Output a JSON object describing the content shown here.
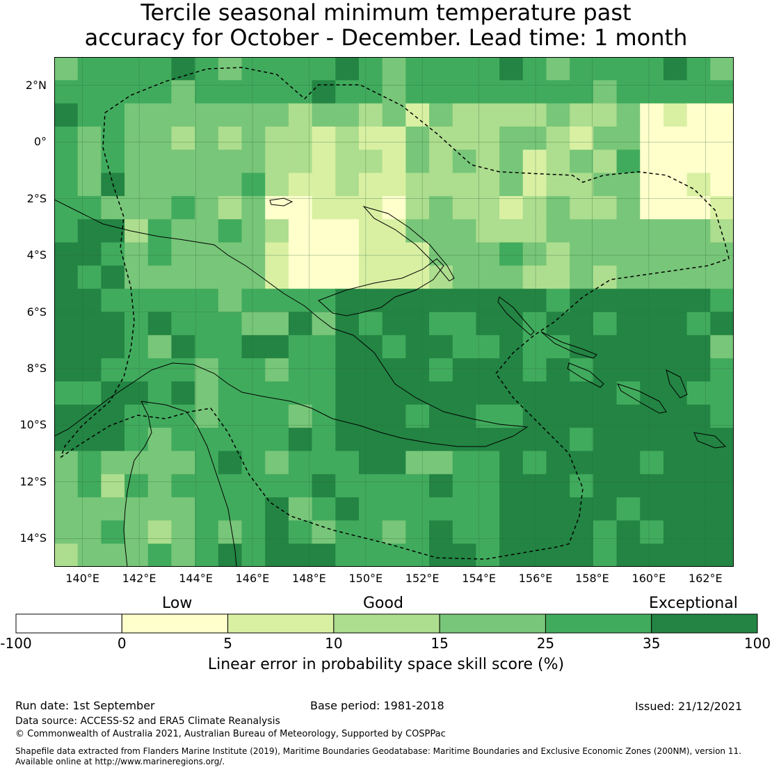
{
  "title": {
    "line1": "Tercile seasonal minimum temperature past",
    "line2": "accuracy for October - December. Lead time: 1 month"
  },
  "map": {
    "lat_labels": [
      "2°N",
      "0°",
      "2°S",
      "4°S",
      "6°S",
      "8°S",
      "10°S",
      "12°S",
      "14°S"
    ],
    "lon_labels": [
      "140°E",
      "142°E",
      "144°E",
      "146°E",
      "148°E",
      "150°E",
      "152°E",
      "154°E",
      "156°E",
      "158°E",
      "160°E",
      "162°E"
    ],
    "region": "Papua New Guinea",
    "land_color": "#ffffff",
    "coast_color": "#000000"
  },
  "legend": {
    "categories": [
      "Low",
      "Good",
      "Exceptional"
    ],
    "ticks": [
      "-100",
      "0",
      "5",
      "10",
      "15",
      "25",
      "35",
      "100"
    ],
    "colors": [
      "#ffffff",
      "#ffffcc",
      "#d9f0a3",
      "#addd8e",
      "#78c679",
      "#41ab5d",
      "#238443"
    ],
    "title": "Linear error in probability space skill score (%)"
  },
  "footer": {
    "run_date": "Run date: 1st September",
    "base_period": "Base period: 1981-2018",
    "issued": "Issued: 21/12/2021",
    "data_source": "Data source: ACCESS-S2 and ERA5 Climate Reanalysis",
    "copyright": "© Commonwealth of Australia 2021, Australian Bureau of Meteorology, Supported by COSPPac",
    "shapefile_1": "Shapefile data extracted from Flanders Marine Institute (2019), Maritime Boundaries Geodatabase: Maritime Boundaries and Exclusive Economic Zones (200NM), version 11.",
    "shapefile_2": "Available online at http://www.marineregions.org/."
  }
}
